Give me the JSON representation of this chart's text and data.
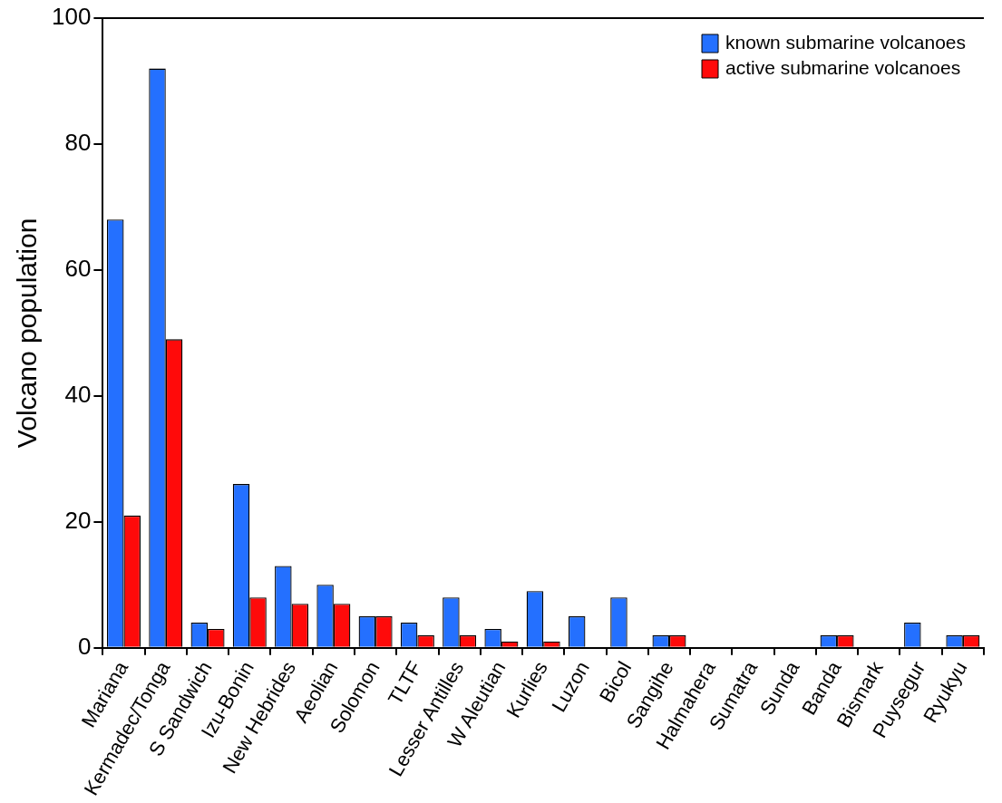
{
  "chart_data": {
    "type": "bar",
    "ylabel": "Volcano population",
    "categories": [
      "Mariana",
      "Kermadec/Tonga",
      "S Sandwich",
      "Izu-Bonin",
      "New Hebrides",
      "Aeolian",
      "Solomon",
      "TLTF",
      "Lesser Antilles",
      "W Aleutian",
      "Kurlies",
      "Luzon",
      "Bicol",
      "Sangihe",
      "Halmahera",
      "Sumatra",
      "Sunda",
      "Banda",
      "Bismark",
      "Puysegur",
      "Ryukyu"
    ],
    "series": [
      {
        "name": "known submarine volcanoes",
        "color": "#2470ff",
        "values": [
          68,
          92,
          4,
          26,
          13,
          10,
          5,
          4,
          8,
          3,
          9,
          5,
          8,
          2,
          0,
          0,
          0,
          2,
          0,
          4,
          2
        ]
      },
      {
        "name": "active submarine volcanoes",
        "color": "#ff0a0a",
        "values": [
          21,
          49,
          3,
          8,
          7,
          7,
          5,
          2,
          2,
          1,
          1,
          0,
          0,
          2,
          0,
          0,
          0,
          2,
          0,
          0,
          2
        ]
      }
    ],
    "ylim": [
      0,
      100
    ],
    "yticks": [
      0,
      20,
      40,
      60,
      80,
      100
    ],
    "grid": false,
    "legend": "top right"
  }
}
